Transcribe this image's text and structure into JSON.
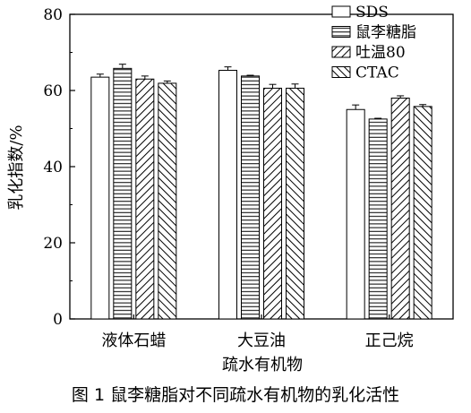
{
  "caption": "图 1 鼠李糖脂对不同疏水有机物的乳化活性",
  "chart_data": {
    "type": "bar",
    "xlabel": "疏水有机物",
    "ylabel": "乳化指数/%",
    "ylim": [
      0,
      80
    ],
    "yticks": [
      0,
      20,
      40,
      60,
      80
    ],
    "categories": [
      "液体石蜡",
      "大豆油",
      "正己烷"
    ],
    "legend_position": "top-right",
    "grid": false,
    "series": [
      {
        "name": "SDS",
        "pattern": "none",
        "values": [
          63.5,
          65.3,
          55.0
        ],
        "errors": [
          0.8,
          0.9,
          1.2
        ]
      },
      {
        "name": "鼠李糖脂",
        "pattern": "horizontal",
        "values": [
          65.8,
          63.8,
          52.5
        ],
        "errors": [
          1.1,
          0.2,
          0.2
        ]
      },
      {
        "name": "吐温80",
        "pattern": "diagonal-up",
        "values": [
          63.0,
          60.6,
          58.0
        ],
        "errors": [
          0.8,
          1.0,
          0.6
        ]
      },
      {
        "name": "CTAC",
        "pattern": "diagonal-down",
        "values": [
          61.9,
          60.6,
          55.8
        ],
        "errors": [
          0.6,
          1.1,
          0.5
        ]
      }
    ]
  }
}
